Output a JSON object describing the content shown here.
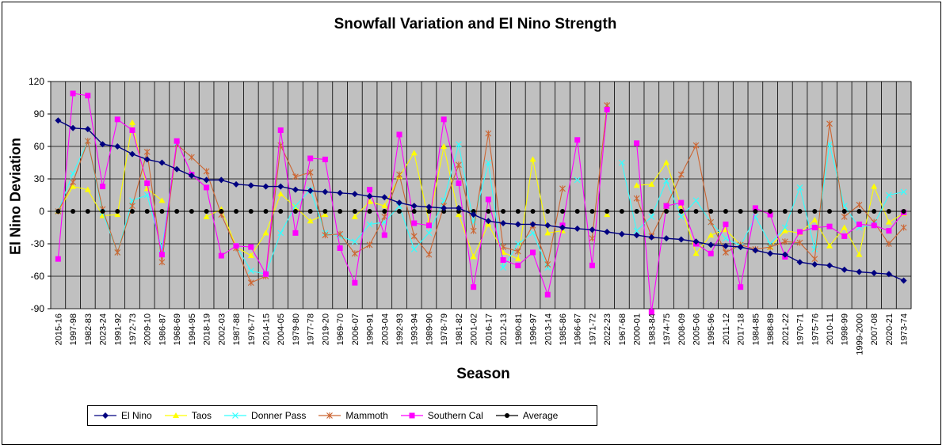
{
  "chart_data": {
    "type": "line",
    "title": "Snowfall Variation  and El Nino Strength",
    "xlabel": "Season",
    "ylabel": "El Nino Deviation",
    "ylim": [
      -90,
      120
    ],
    "yticks": [
      -90,
      -60,
      -30,
      0,
      30,
      60,
      90,
      120
    ],
    "grid": true,
    "legend_position": "bottom",
    "categories": [
      "2015-16",
      "1997-98",
      "1982-83",
      "2023-24",
      "1991-92",
      "1972-73",
      "2009-10",
      "1986-87",
      "1968-69",
      "1994-95",
      "2018-19",
      "2002-03",
      "1987-88",
      "1976-77",
      "2014-15",
      "2004-05",
      "1979-80",
      "1977-78",
      "2019-20",
      "1969-70",
      "2006-07",
      "1990-91",
      "2003-04",
      "1992-93",
      "1993-94",
      "1989-90",
      "1978-79",
      "1981-82",
      "2001-02",
      "2016-17",
      "2012-13",
      "1980-81",
      "1996-97",
      "2013-14",
      "1985-86",
      "1966-67",
      "1971-72",
      "2022-23",
      "1967-68",
      "2000-01",
      "1983-84",
      "1974-75",
      "2008-09",
      "2005-06",
      "1995-96",
      "2011-12",
      "2017-18",
      "1984-85",
      "1988-89",
      "2021-22",
      "1970-71",
      "1975-76",
      "2010-11",
      "1998-99",
      "1999-2000",
      "2007-08",
      "2020-21",
      "1973-74"
    ],
    "series": [
      {
        "name": "El Nino",
        "color": "#000080",
        "marker": "diamond",
        "values": [
          84,
          77,
          76,
          62,
          60,
          53,
          48,
          45,
          39,
          33,
          29,
          29,
          25,
          24,
          23,
          23,
          20,
          19,
          18,
          17,
          16,
          14,
          13,
          8,
          5,
          4,
          3,
          3,
          -3,
          -9,
          -11,
          -12,
          -12,
          -13,
          -15,
          -16,
          -17,
          -19,
          -21,
          -22,
          -24,
          -25,
          -26,
          -28,
          -31,
          -32,
          -33,
          -36,
          -39,
          -40,
          -47,
          -49,
          -50,
          -54,
          -56,
          -57,
          -58,
          -64
        ]
      },
      {
        "name": "Taos",
        "color": "#ffff00",
        "marker": "triangle",
        "values": [
          0,
          23,
          20,
          -4,
          -3,
          82,
          21,
          10,
          null,
          null,
          -5,
          2,
          -33,
          -41,
          -20,
          16,
          4,
          -9,
          -3,
          null,
          -5,
          9,
          5,
          32,
          54,
          -10,
          60,
          -3,
          -42,
          -12,
          -38,
          -44,
          48,
          -20,
          -18,
          null,
          null,
          -3,
          null,
          24,
          25,
          45,
          5,
          -39,
          -22,
          -17,
          -31,
          null,
          -33,
          -18,
          -20,
          -8,
          -32,
          -15,
          -40,
          23,
          -10,
          -2
        ]
      },
      {
        "name": "Donner Pass",
        "color": "#33ffff",
        "marker": "x",
        "values": [
          0,
          35,
          65,
          -1,
          -38,
          10,
          15,
          -35,
          63,
          null,
          null,
          null,
          -32,
          -55,
          -58,
          -20,
          5,
          20,
          -20,
          -23,
          -28,
          -12,
          -10,
          5,
          -35,
          -20,
          10,
          62,
          -10,
          45,
          -52,
          -30,
          -20,
          -52,
          null,
          29,
          null,
          null,
          45,
          -18,
          -5,
          28,
          -5,
          10,
          -10,
          -25,
          -32,
          -5,
          -30,
          -15,
          22,
          -35,
          62,
          5,
          -15,
          -12,
          15,
          18
        ]
      },
      {
        "name": "Mammoth",
        "color": "#cc6633",
        "marker": "asterisk",
        "values": [
          0,
          27,
          65,
          2,
          -38,
          5,
          55,
          -47,
          62,
          50,
          37,
          -3,
          -34,
          -66,
          -60,
          61,
          32,
          36,
          -22,
          -21,
          -39,
          -31,
          -5,
          34,
          -23,
          -40,
          5,
          43,
          -18,
          72,
          -33,
          -37,
          -13,
          -49,
          21,
          null,
          -25,
          98,
          null,
          12,
          -23,
          5,
          34,
          61,
          -10,
          -38,
          -31,
          -35,
          -33,
          -28,
          -29,
          -44,
          81,
          -5,
          6,
          -10,
          -30,
          -15
        ]
      },
      {
        "name": "Southern Cal",
        "color": "#ff00ff",
        "marker": "square",
        "values": [
          -44,
          109,
          107,
          23,
          85,
          75,
          26,
          -40,
          65,
          34,
          22,
          -41,
          -32,
          -33,
          -58,
          75,
          -20,
          49,
          48,
          -34,
          -66,
          20,
          -22,
          71,
          -11,
          -13,
          85,
          26,
          -70,
          11,
          -45,
          -50,
          -38,
          -77,
          -13,
          66,
          -50,
          94,
          null,
          63,
          -93,
          5,
          8,
          -30,
          -39,
          -12,
          -70,
          3,
          -3,
          -42,
          -19,
          -15,
          -14,
          -23,
          -12,
          -13,
          -18,
          -1
        ]
      },
      {
        "name": "Average",
        "color": "#000000",
        "marker": "circle",
        "values": [
          0,
          0,
          0,
          0,
          0,
          0,
          0,
          0,
          0,
          0,
          0,
          0,
          0,
          0,
          0,
          0,
          0,
          0,
          0,
          0,
          0,
          0,
          0,
          0,
          0,
          0,
          0,
          0,
          0,
          0,
          0,
          0,
          0,
          0,
          0,
          0,
          0,
          0,
          0,
          0,
          0,
          0,
          0,
          0,
          0,
          0,
          0,
          0,
          0,
          0,
          0,
          0,
          0,
          0,
          0,
          0,
          0,
          0
        ]
      }
    ]
  }
}
